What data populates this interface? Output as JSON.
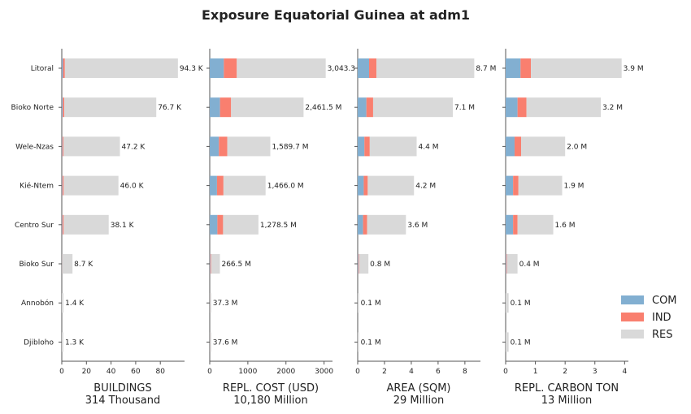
{
  "chart_data": {
    "type": "bar",
    "orientation": "horizontal",
    "stacked": true,
    "title": "Exposure Equatorial Guinea at adm1",
    "regions": [
      "Litoral",
      "Bioko Norte",
      "Wele-Nzas",
      "Kié-Ntem",
      "Centro Sur",
      "Bioko Sur",
      "Annobón",
      "Djibloho"
    ],
    "legend": {
      "position": "bottom-right",
      "entries": [
        {
          "name": "COM",
          "color": "#82afd1"
        },
        {
          "name": "IND",
          "color": "#f97f6f"
        },
        {
          "name": "RES",
          "color": "#d9d9d9"
        }
      ]
    },
    "panels": [
      {
        "xlabel": "BUILDINGS",
        "total": "314 Thousand",
        "xlim": [
          0,
          99
        ],
        "ticks": [
          0,
          20,
          40,
          60,
          80
        ],
        "com": [
          1.0,
          0.8,
          0.5,
          0.5,
          0.5,
          0.1,
          0.0,
          0.0
        ],
        "ind": [
          1.5,
          1.2,
          0.8,
          1.0,
          1.0,
          0.1,
          0.0,
          0.0
        ],
        "res": [
          91.8,
          74.7,
          45.9,
          44.5,
          36.6,
          8.5,
          1.4,
          1.3
        ],
        "labels": [
          "94.3 K",
          "76.7 K",
          "47.2 K",
          "46.0 K",
          "38.1 K",
          "8.7 K",
          "1.4 K",
          "1.3 K"
        ]
      },
      {
        "xlabel": "REPL. COST (USD)",
        "total": "10,180 Million",
        "xlim": [
          0,
          3200
        ],
        "ticks": [
          0,
          1000,
          2000,
          3000
        ],
        "com": [
          370,
          270,
          240,
          190,
          200,
          15,
          2,
          2
        ],
        "ind": [
          340,
          290,
          220,
          170,
          150,
          20,
          3,
          3
        ],
        "res": [
          2333.3,
          1901.5,
          1129.7,
          1106.0,
          928.5,
          231.5,
          32.3,
          32.6
        ],
        "labels": [
          "3,043.3",
          "2,461.5 M",
          "1,589.7 M",
          "1,466.0 M",
          "1,278.5 M",
          "266.5 M",
          "37.3 M",
          "37.6 M"
        ]
      },
      {
        "xlabel": "AREA (SQM)",
        "total": "29 Million",
        "xlim": [
          0,
          9.1
        ],
        "ticks": [
          0,
          2,
          4,
          6,
          8
        ],
        "com": [
          0.85,
          0.65,
          0.5,
          0.45,
          0.4,
          0.05,
          0.0,
          0.0
        ],
        "ind": [
          0.55,
          0.5,
          0.4,
          0.3,
          0.3,
          0.05,
          0.0,
          0.0
        ],
        "res": [
          7.3,
          5.95,
          3.5,
          3.45,
          2.9,
          0.7,
          0.1,
          0.1
        ],
        "labels": [
          "8.7 M",
          "7.1 M",
          "4.4 M",
          "4.2 M",
          "3.6 M",
          "0.8 M",
          "0.1 M",
          "0.1 M"
        ]
      },
      {
        "xlabel": "REPL. CARBON TON",
        "total": "13 Million",
        "xlim": [
          0,
          4.1
        ],
        "ticks": [
          0,
          1,
          2,
          3,
          4
        ],
        "com": [
          0.5,
          0.4,
          0.3,
          0.25,
          0.25,
          0.02,
          0.0,
          0.0
        ],
        "ind": [
          0.35,
          0.3,
          0.22,
          0.18,
          0.15,
          0.02,
          0.0,
          0.0
        ],
        "res": [
          3.05,
          2.5,
          1.48,
          1.47,
          1.2,
          0.36,
          0.1,
          0.1
        ],
        "labels": [
          "3.9 M",
          "3.2 M",
          "2.0 M",
          "1.9 M",
          "1.6 M",
          "0.4 M",
          "0.1 M",
          "0.1 M"
        ]
      }
    ]
  }
}
